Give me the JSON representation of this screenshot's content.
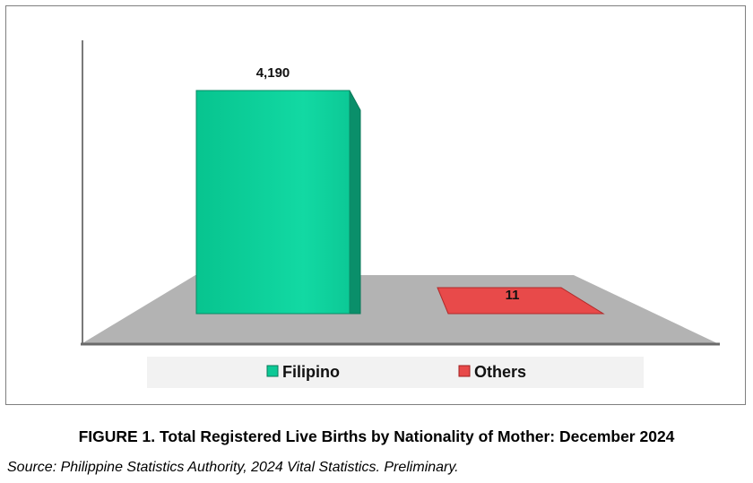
{
  "chart_data": {
    "type": "bar",
    "categories": [
      "Filipino",
      "Others"
    ],
    "values": [
      4190,
      11
    ],
    "value_labels": [
      "4,190",
      "11"
    ],
    "colors": {
      "Filipino": "#0cc996",
      "Others": "#e84a4a",
      "floor": "#b3b3b3"
    },
    "legend": [
      {
        "label": "Filipino",
        "color": "#0cc996"
      },
      {
        "label": "Others",
        "color": "#e84a4a"
      }
    ],
    "legend_position": "bottom",
    "style": "3d",
    "grid": false
  },
  "caption": {
    "title": "FIGURE 1. Total Registered Live Births by Nationality of Mother: December 2024",
    "source": "Source: Philippine Statistics Authority, 2024 Vital Statistics. Preliminary."
  }
}
